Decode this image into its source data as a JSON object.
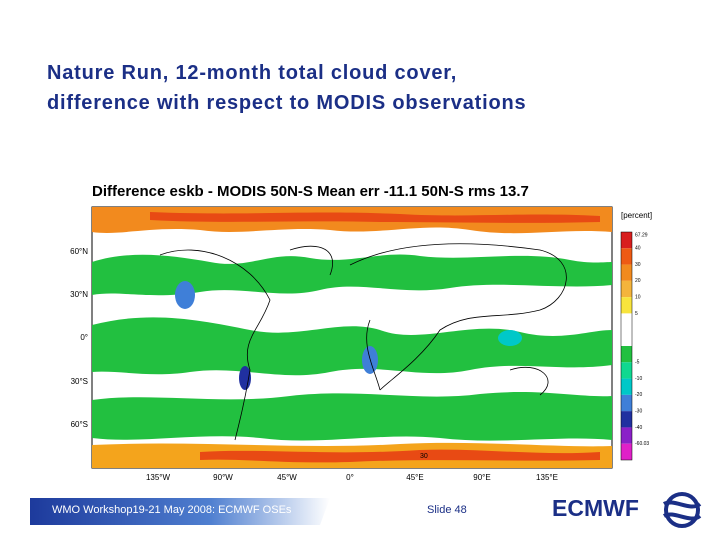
{
  "title": {
    "lines": [
      "Nature Run, 12-month total cloud cover,",
      "difference with respect to MODIS observations"
    ]
  },
  "figure": {
    "title": "Difference  eskb - MODIS 50N-S Mean err -11.1 50N-S rms 13.7",
    "unit": "[percent]",
    "lat_labels": [
      "60°N",
      "30°N",
      "0°",
      "30°S",
      "60°S"
    ],
    "lon_labels": [
      "135°W",
      "90°W",
      "45°W",
      "0°",
      "45°E",
      "90°E",
      "135°E"
    ],
    "colorbar_labels": [
      "67.29",
      "40",
      "30",
      "20",
      "10",
      "5",
      "-5",
      "-10",
      "-20",
      "-30",
      "-40",
      "-60.03"
    ],
    "contour_label": "30"
  },
  "footer": {
    "event": "WMO Workshop19-21 May 2008:  ECMWF OSEs",
    "slide": "Slide  48",
    "logo": "ECMWF"
  }
}
